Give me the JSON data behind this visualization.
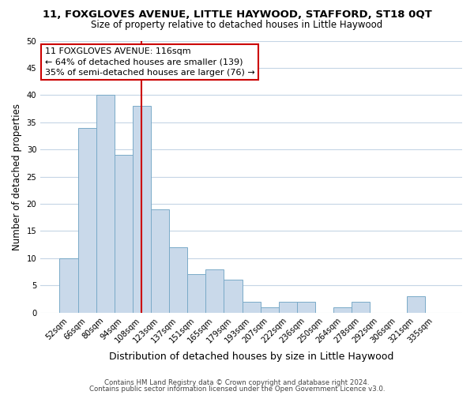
{
  "title": "11, FOXGLOVES AVENUE, LITTLE HAYWOOD, STAFFORD, ST18 0QT",
  "subtitle": "Size of property relative to detached houses in Little Haywood",
  "xlabel": "Distribution of detached houses by size in Little Haywood",
  "ylabel": "Number of detached properties",
  "bin_labels": [
    "52sqm",
    "66sqm",
    "80sqm",
    "94sqm",
    "108sqm",
    "123sqm",
    "137sqm",
    "151sqm",
    "165sqm",
    "179sqm",
    "193sqm",
    "207sqm",
    "222sqm",
    "236sqm",
    "250sqm",
    "264sqm",
    "278sqm",
    "292sqm",
    "306sqm",
    "321sqm",
    "335sqm"
  ],
  "bar_values": [
    10,
    34,
    40,
    29,
    38,
    19,
    12,
    7,
    8,
    6,
    2,
    1,
    2,
    2,
    0,
    1,
    2,
    0,
    0,
    3,
    0
  ],
  "bar_color": "#c9d9ea",
  "bar_edge_color": "#7aaac8",
  "vline_color": "#cc0000",
  "vline_x": 4.0,
  "annotation_text_line1": "11 FOXGLOVES AVENUE: 116sqm",
  "annotation_text_line2": "← 64% of detached houses are smaller (139)",
  "annotation_text_line3": "35% of semi-detached houses are larger (76) →",
  "ylim": [
    0,
    50
  ],
  "yticks": [
    0,
    5,
    10,
    15,
    20,
    25,
    30,
    35,
    40,
    45,
    50
  ],
  "footer_line1": "Contains HM Land Registry data © Crown copyright and database right 2024.",
  "footer_line2": "Contains public sector information licensed under the Open Government Licence v3.0.",
  "bg_color": "#ffffff",
  "grid_color": "#c5d5e5",
  "title_fontsize": 9.5,
  "subtitle_fontsize": 8.5,
  "xlabel_fontsize": 9.0,
  "ylabel_fontsize": 8.5,
  "tick_fontsize": 7.2,
  "annotation_fontsize": 8.0,
  "footer_fontsize": 6.2
}
